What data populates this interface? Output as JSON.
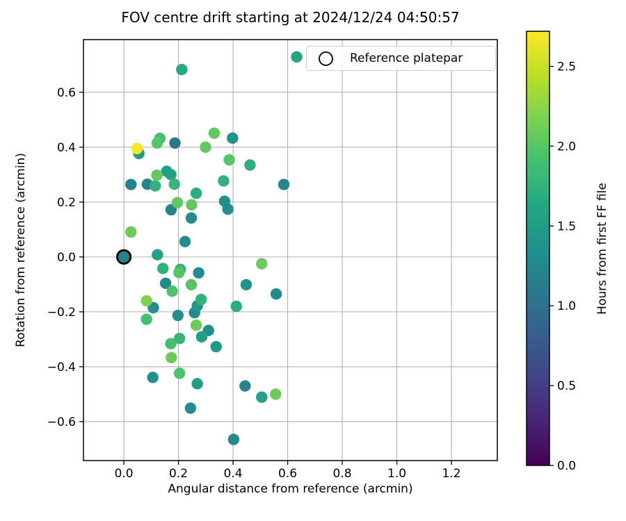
{
  "chart_data": {
    "type": "scatter",
    "title": "FOV centre drift starting at 2024/12/24 04:50:57",
    "xlabel": "Angular distance from reference (arcmin)",
    "ylabel": "Rotation from reference (arcmin)",
    "grid": true,
    "xlim": [
      -0.148,
      1.368
    ],
    "ylim": [
      -0.742,
      0.792
    ],
    "xticks": [
      0.0,
      0.2,
      0.4,
      0.6,
      0.8,
      1.0,
      1.2
    ],
    "xtick_labels": [
      "0.0",
      "0.2",
      "0.4",
      "0.6",
      "0.8",
      "1.0",
      "1.2"
    ],
    "yticks": [
      0.6,
      0.4,
      0.2,
      0.0,
      -0.2,
      -0.4,
      -0.6
    ],
    "ytick_labels": [
      "0.6",
      "0.4",
      "0.2",
      "0.0",
      "−0.2",
      "−0.4",
      "−0.6"
    ],
    "legend": {
      "label": "Reference platepar",
      "position": "upper right",
      "marker": "open-circle"
    },
    "reference_point": {
      "x": 0.0,
      "y": 0.0
    },
    "colorbar": {
      "label": "Hours from first FF file",
      "vmin": 0.0,
      "vmax": 2.72,
      "ticks": [
        0.0,
        0.5,
        1.0,
        1.5,
        2.0,
        2.5
      ],
      "tick_labels": [
        "0.0",
        "0.5",
        "1.0",
        "1.5",
        "2.0",
        "2.5"
      ]
    },
    "colormap": {
      "name": "viridis",
      "anchors": [
        [
          0.0,
          "#440154"
        ],
        [
          0.1,
          "#482475"
        ],
        [
          0.2,
          "#414487"
        ],
        [
          0.3,
          "#355f8d"
        ],
        [
          0.4,
          "#2a788e"
        ],
        [
          0.5,
          "#21918c"
        ],
        [
          0.6,
          "#22a884"
        ],
        [
          0.7,
          "#44bf70"
        ],
        [
          0.8,
          "#7ad151"
        ],
        [
          0.9,
          "#bddf26"
        ],
        [
          1.0,
          "#fde725"
        ]
      ]
    },
    "grid_color": "#b0b0b0",
    "frame_color": "#000000",
    "points_unit": "[angular_distance_arcmin, rotation_arcmin, hours_from_first_FF_file]",
    "points": [
      [
        0.212,
        0.683,
        1.65
      ],
      [
        0.633,
        0.729,
        1.6
      ],
      [
        0.048,
        0.395,
        2.7
      ],
      [
        0.055,
        0.377,
        1.5
      ],
      [
        0.122,
        0.415,
        2.0
      ],
      [
        0.132,
        0.432,
        1.9
      ],
      [
        0.187,
        0.415,
        1.05
      ],
      [
        0.299,
        0.4,
        2.05
      ],
      [
        0.331,
        0.451,
        2.05
      ],
      [
        0.398,
        0.433,
        1.4
      ],
      [
        0.386,
        0.354,
        2.0
      ],
      [
        0.462,
        0.335,
        1.7
      ],
      [
        0.121,
        0.298,
        2.05
      ],
      [
        0.157,
        0.312,
        1.5
      ],
      [
        0.172,
        0.3,
        1.55
      ],
      [
        0.026,
        0.264,
        1.2
      ],
      [
        0.086,
        0.265,
        1.2
      ],
      [
        0.115,
        0.259,
        1.75
      ],
      [
        0.185,
        0.265,
        1.8
      ],
      [
        0.365,
        0.277,
        1.75
      ],
      [
        0.586,
        0.264,
        1.25
      ],
      [
        0.265,
        0.232,
        1.7
      ],
      [
        0.196,
        0.198,
        2.05
      ],
      [
        0.248,
        0.19,
        2.05
      ],
      [
        0.173,
        0.172,
        1.2
      ],
      [
        0.369,
        0.203,
        1.35
      ],
      [
        0.381,
        0.174,
        1.35
      ],
      [
        0.247,
        0.142,
        1.3
      ],
      [
        0.026,
        0.091,
        2.1
      ],
      [
        0.224,
        0.056,
        1.3
      ],
      [
        0.123,
        0.008,
        1.55
      ],
      [
        0.0,
        0.0,
        1.2
      ],
      [
        0.143,
        -0.042,
        1.75
      ],
      [
        0.202,
        -0.057,
        2.0
      ],
      [
        0.207,
        -0.045,
        1.8
      ],
      [
        0.274,
        -0.058,
        1.3
      ],
      [
        0.505,
        -0.025,
        2.1
      ],
      [
        0.153,
        -0.096,
        1.3
      ],
      [
        0.247,
        -0.101,
        2.0
      ],
      [
        0.177,
        -0.125,
        1.95
      ],
      [
        0.448,
        -0.101,
        1.4
      ],
      [
        0.558,
        -0.135,
        1.3
      ],
      [
        0.083,
        -0.16,
        2.2
      ],
      [
        0.108,
        -0.185,
        1.35
      ],
      [
        0.283,
        -0.155,
        1.75
      ],
      [
        0.269,
        -0.178,
        1.45
      ],
      [
        0.412,
        -0.18,
        1.7
      ],
      [
        0.083,
        -0.227,
        1.9
      ],
      [
        0.198,
        -0.213,
        1.35
      ],
      [
        0.259,
        -0.203,
        1.3
      ],
      [
        0.265,
        -0.249,
        2.1
      ],
      [
        0.31,
        -0.268,
        1.35
      ],
      [
        0.285,
        -0.291,
        1.5
      ],
      [
        0.172,
        -0.316,
        1.9
      ],
      [
        0.204,
        -0.297,
        1.8
      ],
      [
        0.338,
        -0.327,
        1.45
      ],
      [
        0.174,
        -0.367,
        2.1
      ],
      [
        0.204,
        -0.424,
        1.95
      ],
      [
        0.106,
        -0.439,
        1.35
      ],
      [
        0.269,
        -0.462,
        1.5
      ],
      [
        0.444,
        -0.47,
        1.25
      ],
      [
        0.505,
        -0.511,
        1.55
      ],
      [
        0.556,
        -0.5,
        2.1
      ],
      [
        0.244,
        -0.551,
        1.35
      ],
      [
        0.402,
        -0.665,
        1.3
      ]
    ]
  }
}
